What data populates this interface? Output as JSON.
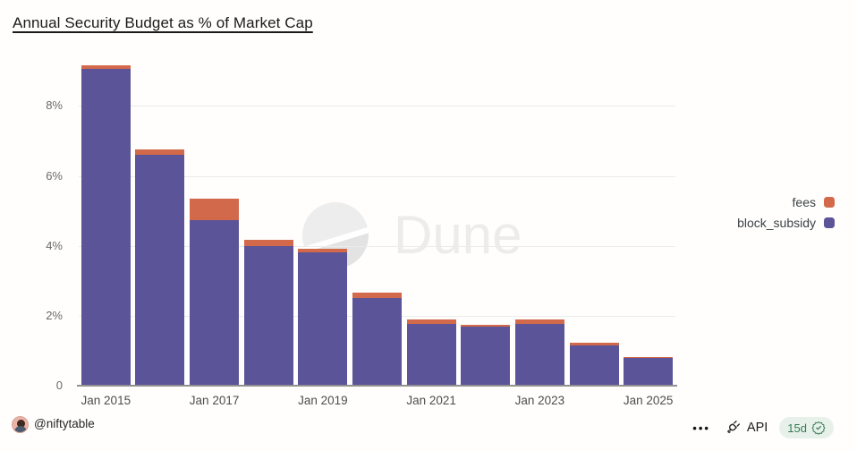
{
  "title": "Annual Security Budget as % of Market Cap",
  "watermark": {
    "brand": "Dune"
  },
  "chart_data": {
    "type": "bar",
    "stacked": true,
    "title": "Annual Security Budget as % of Market Cap",
    "xlabel": "",
    "ylabel": "",
    "ylim": [
      0,
      9.6
    ],
    "grid": true,
    "legend_position": "right",
    "categories": [
      "2015",
      "2016",
      "2017",
      "2018",
      "2019",
      "2020",
      "2021",
      "2022",
      "2023",
      "2024",
      "2025"
    ],
    "series": [
      {
        "name": "block_subsidy",
        "color": "#5b5498",
        "values": [
          9.05,
          6.6,
          4.73,
          4.0,
          3.8,
          2.52,
          1.76,
          1.7,
          1.76,
          1.16,
          0.8
        ]
      },
      {
        "name": "fees",
        "color": "#d2694b",
        "values": [
          0.1,
          0.16,
          0.62,
          0.16,
          0.12,
          0.15,
          0.13,
          0.04,
          0.14,
          0.06,
          0.01
        ]
      }
    ],
    "x_ticks": [
      {
        "index": 0,
        "label": "Jan 2015"
      },
      {
        "index": 2,
        "label": "Jan 2017"
      },
      {
        "index": 4,
        "label": "Jan 2019"
      },
      {
        "index": 6,
        "label": "Jan 2021"
      },
      {
        "index": 8,
        "label": "Jan 2023"
      },
      {
        "index": 10,
        "label": "Jan 2025"
      }
    ],
    "y_ticks": [
      {
        "value": 0,
        "label": "0"
      },
      {
        "value": 2,
        "label": "2%"
      },
      {
        "value": 4,
        "label": "4%"
      },
      {
        "value": 6,
        "label": "6%"
      },
      {
        "value": 8,
        "label": "8%"
      }
    ]
  },
  "legend": {
    "items": [
      {
        "label": "fees",
        "color": "#d2694b"
      },
      {
        "label": "block_subsidy",
        "color": "#5b5498"
      }
    ]
  },
  "footer": {
    "author": "@niftytable",
    "menu_label": "•••",
    "api_label": "API",
    "refresh_badge": "15d"
  },
  "colors": {
    "fees": "#d2694b",
    "block_subsidy": "#5b5498",
    "badge_bg": "#e7f1ea",
    "badge_green": "#367a53"
  }
}
